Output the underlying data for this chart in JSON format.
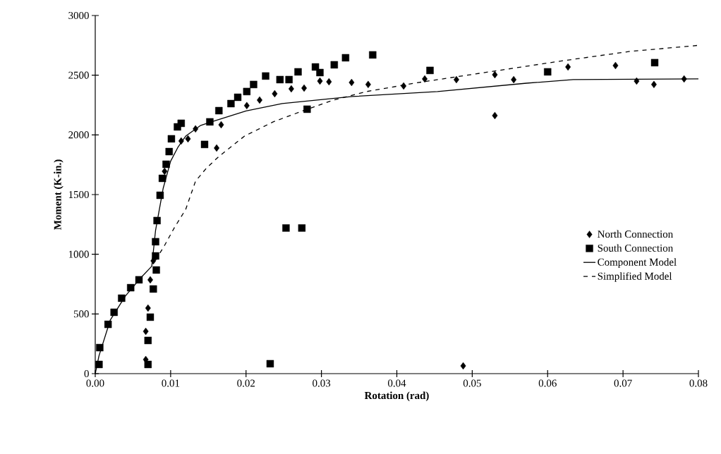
{
  "chart_data": {
    "type": "scatter",
    "xlabel": "Rotation (rad)",
    "ylabel": "Moment (K-in.)",
    "xlim": [
      0,
      0.08
    ],
    "ylim": [
      0,
      3000
    ],
    "xticks": [
      {
        "value": 0,
        "label": "0.00"
      },
      {
        "value": 0.01,
        "label": "0.01"
      },
      {
        "value": 0.02,
        "label": "0.02"
      },
      {
        "value": 0.03,
        "label": "0.03"
      },
      {
        "value": 0.04,
        "label": "0.04"
      },
      {
        "value": 0.05,
        "label": "0.05"
      },
      {
        "value": 0.06,
        "label": "0.06"
      },
      {
        "value": 0.07,
        "label": "0.07"
      },
      {
        "value": 0.08,
        "label": "0.08"
      }
    ],
    "yticks": [
      0,
      500,
      1000,
      1500,
      2000,
      2500,
      3000
    ],
    "grid": false,
    "legend": "right",
    "series": [
      {
        "name": "North Connection",
        "marker": "diamond",
        "color": "#000000",
        "x": [
          0.0067,
          0.0067,
          0.007,
          0.0073,
          0.0077,
          0.0092,
          0.0101,
          0.0114,
          0.0123,
          0.0133,
          0.0161,
          0.0167,
          0.0201,
          0.0218,
          0.0238,
          0.026,
          0.0277,
          0.0298,
          0.031,
          0.034,
          0.0362,
          0.0409,
          0.0437,
          0.0479,
          0.0488,
          0.053,
          0.053,
          0.0555,
          0.0627,
          0.069,
          0.0718,
          0.0741,
          0.0781
        ],
        "values": [
          118,
          354,
          549,
          786,
          945,
          1695,
          null,
          1949,
          1967,
          2050,
          1890,
          2085,
          2245,
          2292,
          2345,
          2386,
          2392,
          2451,
          2445,
          2439,
          2422,
          2410,
          2469,
          2463,
          65,
          2504,
          2162,
          2463,
          2569,
          2581,
          2451,
          2422,
          2469
        ]
      },
      {
        "name": "South Connection",
        "marker": "square",
        "color": "#000000",
        "x": [
          0.0005,
          0.0006,
          0.0017,
          0.0025,
          0.0035,
          0.0047,
          0.0058,
          0.007,
          0.007,
          0.0073,
          0.0077,
          0.0081,
          0.008,
          0.008,
          0.0082,
          0.0086,
          0.0089,
          0.0094,
          0.0098,
          0.0101,
          0.0109,
          0.0114,
          0.0145,
          0.0152,
          0.0164,
          0.018,
          0.0189,
          0.0201,
          0.021,
          0.0226,
          0.0245,
          0.0257,
          0.0269,
          0.0292,
          0.0298,
          0.0317,
          0.0332,
          0.0368,
          0.0281,
          0.0232,
          0.0253,
          0.0274,
          0.0444,
          0.06,
          0.0742
        ],
        "values": [
          77,
          218,
          413,
          514,
          632,
          720,
          786,
          77,
          278,
          473,
          709,
          868,
          986,
          1105,
          1282,
          1494,
          1636,
          1754,
          1860,
          1967,
          2067,
          2097,
          1920,
          2109,
          2203,
          2262,
          2315,
          2363,
          2422,
          2493,
          2463,
          2463,
          2528,
          2569,
          2522,
          2587,
          2646,
          2670,
          2215,
          83,
          1220,
          1220,
          2540,
          2528,
          2605
        ]
      },
      {
        "name": "Component Model",
        "type": "line",
        "line_style": "solid",
        "color": "#000000",
        "x": [
          0,
          0.0005,
          0.002,
          0.004,
          0.006,
          0.0075,
          0.008,
          0.009,
          0.01,
          0.011,
          0.012,
          0.014,
          0.0154,
          0.02,
          0.0248,
          0.0341,
          0.0454,
          0.0572,
          0.0634,
          0.08
        ],
        "values": [
          0,
          150,
          450,
          650,
          800,
          900,
          1200,
          1550,
          1780,
          1900,
          1990,
          2080,
          2109,
          2200,
          2262,
          2321,
          2363,
          2433,
          2463,
          2469
        ]
      },
      {
        "name": "Simplified Model",
        "type": "line",
        "line_style": "dashed",
        "color": "#000000",
        "x": [
          0.008,
          0.0092,
          0.0105,
          0.012,
          0.0133,
          0.0148,
          0.0164,
          0.0198,
          0.0236,
          0.0276,
          0.0316,
          0.036,
          0.0423,
          0.0616,
          0.0709,
          0.0784,
          0.08
        ],
        "values": [
          950,
          1075,
          1223,
          1376,
          1612,
          1725,
          1819,
          1990,
          2109,
          2203,
          2292,
          2363,
          2433,
          2617,
          2699,
          2741,
          2750
        ]
      }
    ]
  }
}
